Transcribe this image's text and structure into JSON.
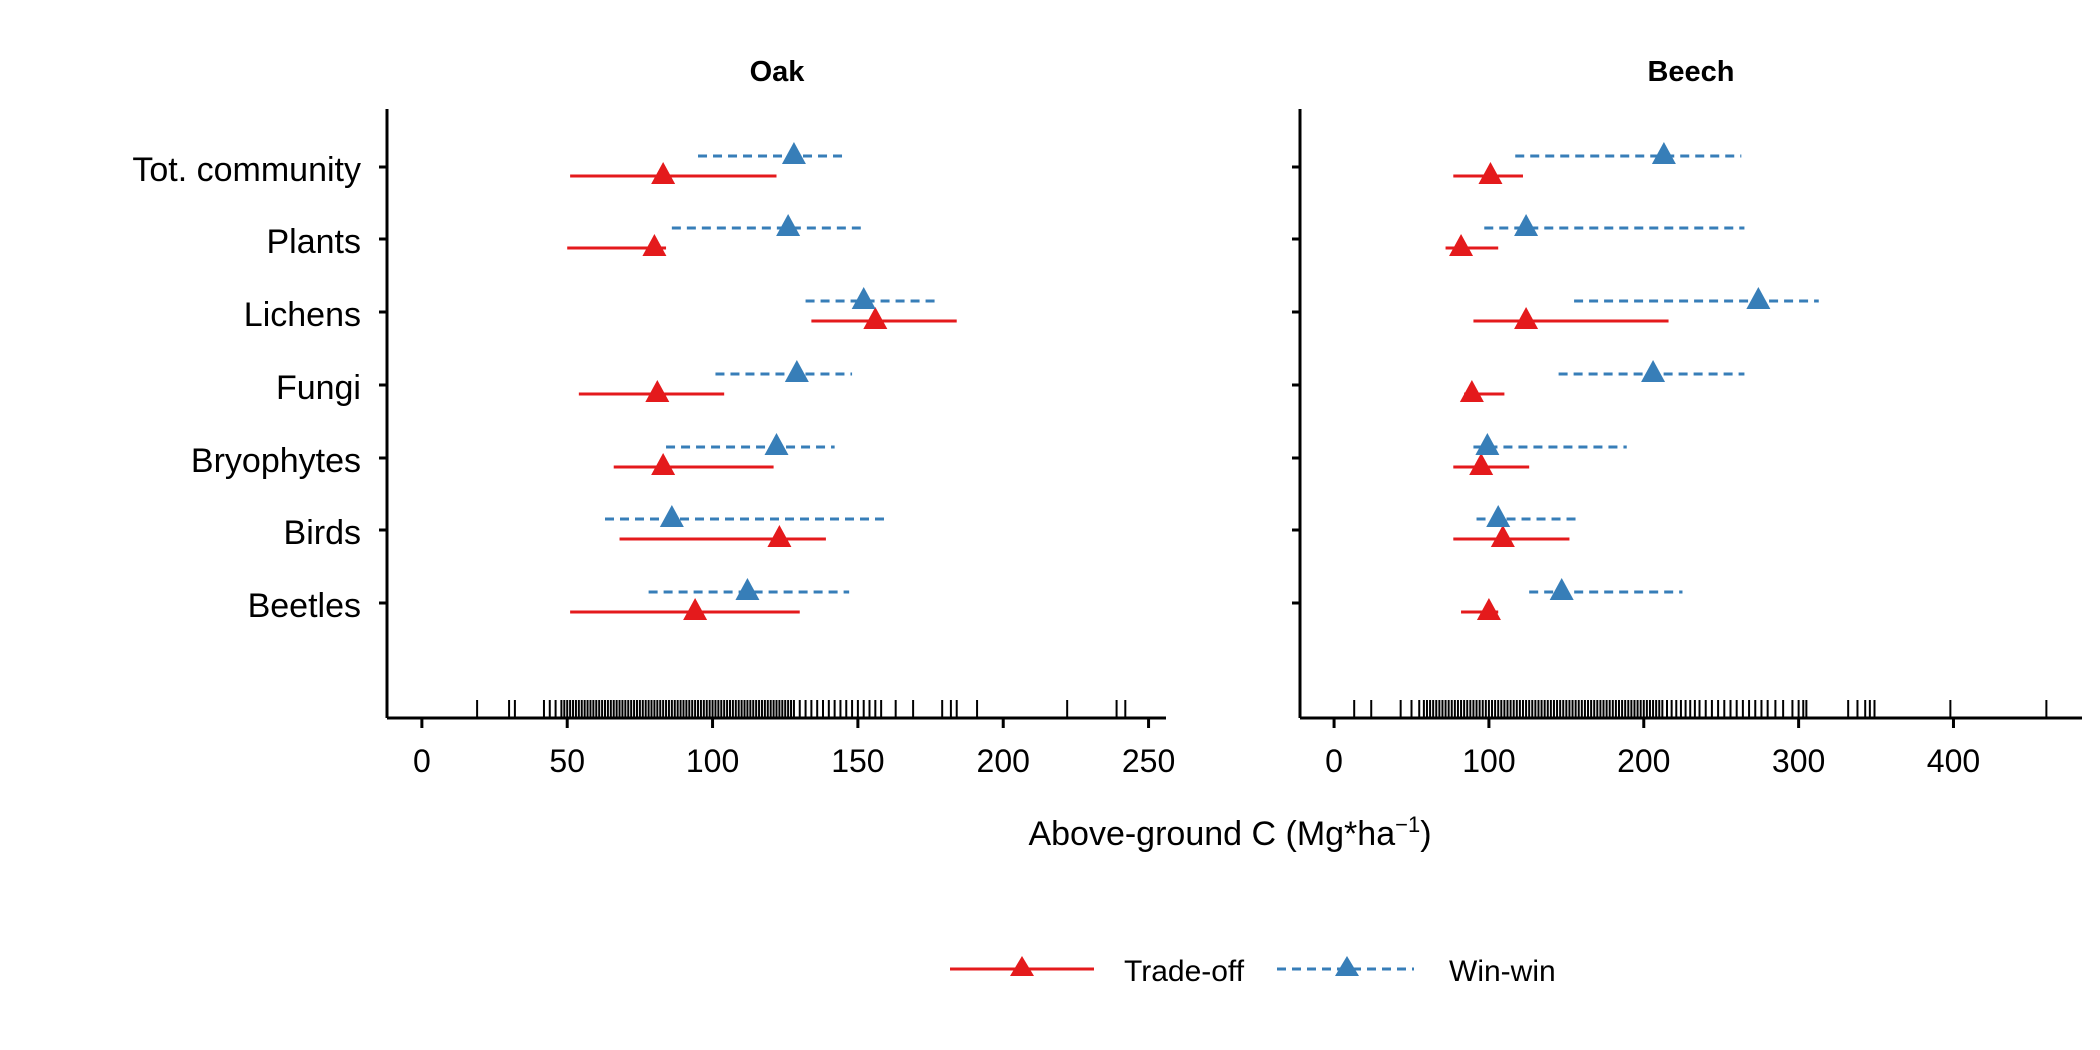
{
  "chart_data": {
    "type": "interval",
    "xlabel_main": "Above-ground C (Mg*ha",
    "xlabel_sup": "−1",
    "xlabel_close": ")",
    "categories": [
      "Tot. community",
      "Plants",
      "Lichens",
      "Fungi",
      "Bryophytes",
      "Birds",
      "Beetles"
    ],
    "series_names": [
      "Trade-off",
      "Win-win"
    ],
    "colors": {
      "Trade-off": "#e41a1c",
      "Win-win": "#377eb8"
    },
    "legend_position": "bottom",
    "panels": [
      {
        "title": "Oak",
        "xlim": [
          -12,
          256
        ],
        "ticks": [
          0,
          50,
          100,
          150,
          200,
          250
        ],
        "tick_labels": [
          "0",
          "50",
          "100",
          "150",
          "200",
          "250"
        ],
        "series": [
          {
            "name": "Trade-off",
            "points": [
              {
                "category": "Tot. community",
                "value": 83,
                "low": 51,
                "high": 122
              },
              {
                "category": "Plants",
                "value": 80,
                "low": 50,
                "high": 84
              },
              {
                "category": "Lichens",
                "value": 156,
                "low": 134,
                "high": 184
              },
              {
                "category": "Fungi",
                "value": 81,
                "low": 54,
                "high": 104
              },
              {
                "category": "Bryophytes",
                "value": 83,
                "low": 66,
                "high": 121
              },
              {
                "category": "Birds",
                "value": 123,
                "low": 68,
                "high": 139
              },
              {
                "category": "Beetles",
                "value": 94,
                "low": 51,
                "high": 130
              }
            ]
          },
          {
            "name": "Win-win",
            "points": [
              {
                "category": "Tot. community",
                "value": 128,
                "low": 95,
                "high": 146
              },
              {
                "category": "Plants",
                "value": 126,
                "low": 86,
                "high": 151
              },
              {
                "category": "Lichens",
                "value": 152,
                "low": 132,
                "high": 178
              },
              {
                "category": "Fungi",
                "value": 129,
                "low": 101,
                "high": 148
              },
              {
                "category": "Bryophytes",
                "value": 122,
                "low": 84,
                "high": 142
              },
              {
                "category": "Birds",
                "value": 86,
                "low": 63,
                "high": 159
              },
              {
                "category": "Beetles",
                "value": 112,
                "low": 78,
                "high": 147
              }
            ]
          }
        ],
        "rug": [
          19,
          30,
          32,
          42,
          44,
          46,
          48,
          49,
          50,
          51,
          52,
          53,
          54,
          55,
          56,
          57,
          58,
          59,
          60,
          61,
          62,
          63,
          64,
          65,
          66,
          67,
          68,
          69,
          70,
          71,
          72,
          73,
          74,
          75,
          76,
          77,
          78,
          79,
          80,
          81,
          82,
          83,
          84,
          85,
          86,
          87,
          88,
          89,
          90,
          91,
          92,
          93,
          94,
          95,
          96,
          97,
          98,
          99,
          100,
          101,
          102,
          103,
          104,
          105,
          106,
          107,
          108,
          109,
          110,
          111,
          112,
          113,
          114,
          115,
          116,
          117,
          118,
          119,
          120,
          121,
          122,
          123,
          124,
          125,
          126,
          127,
          128,
          130,
          132,
          134,
          136,
          138,
          140,
          142,
          144,
          146,
          148,
          150,
          152,
          154,
          156,
          158,
          163,
          169,
          179,
          182,
          184,
          191,
          222,
          239,
          242
        ]
      },
      {
        "title": "Beech",
        "xlim": [
          -22,
          483
        ],
        "ticks": [
          0,
          100,
          200,
          300,
          400
        ],
        "tick_labels": [
          "0",
          "100",
          "200",
          "300",
          "400"
        ],
        "series": [
          {
            "name": "Trade-off",
            "points": [
              {
                "category": "Tot. community",
                "value": 101,
                "low": 77,
                "high": 122
              },
              {
                "category": "Plants",
                "value": 82,
                "low": 72,
                "high": 106
              },
              {
                "category": "Lichens",
                "value": 124,
                "low": 90,
                "high": 216
              },
              {
                "category": "Fungi",
                "value": 89,
                "low": 84,
                "high": 110
              },
              {
                "category": "Bryophytes",
                "value": 95,
                "low": 77,
                "high": 126
              },
              {
                "category": "Birds",
                "value": 109,
                "low": 77,
                "high": 152
              },
              {
                "category": "Beetles",
                "value": 100,
                "low": 82,
                "high": 106
              }
            ]
          },
          {
            "name": "Win-win",
            "points": [
              {
                "category": "Tot. community",
                "value": 213,
                "low": 117,
                "high": 263
              },
              {
                "category": "Plants",
                "value": 124,
                "low": 97,
                "high": 265
              },
              {
                "category": "Lichens",
                "value": 274,
                "low": 155,
                "high": 313
              },
              {
                "category": "Fungi",
                "value": 206,
                "low": 145,
                "high": 265
              },
              {
                "category": "Bryophytes",
                "value": 99,
                "low": 90,
                "high": 189
              },
              {
                "category": "Birds",
                "value": 106,
                "low": 92,
                "high": 159
              },
              {
                "category": "Beetles",
                "value": 147,
                "low": 126,
                "high": 225
              }
            ]
          }
        ],
        "rug": [
          13,
          24,
          43,
          50,
          55,
          58,
          60,
          62,
          64,
          66,
          68,
          70,
          72,
          74,
          76,
          78,
          80,
          82,
          84,
          86,
          88,
          90,
          92,
          94,
          96,
          98,
          100,
          102,
          104,
          106,
          108,
          110,
          112,
          114,
          116,
          118,
          120,
          122,
          124,
          126,
          128,
          130,
          132,
          134,
          136,
          138,
          140,
          142,
          144,
          146,
          148,
          150,
          152,
          154,
          156,
          158,
          160,
          162,
          164,
          166,
          168,
          170,
          172,
          174,
          176,
          178,
          180,
          182,
          184,
          186,
          188,
          190,
          192,
          194,
          196,
          198,
          200,
          202,
          204,
          206,
          208,
          210,
          212,
          215,
          218,
          221,
          224,
          227,
          230,
          233,
          236,
          240,
          244,
          248,
          252,
          256,
          260,
          264,
          268,
          272,
          276,
          280,
          285,
          290,
          296,
          300,
          303,
          305,
          332,
          338,
          343,
          346,
          349,
          398,
          460
        ]
      }
    ]
  }
}
